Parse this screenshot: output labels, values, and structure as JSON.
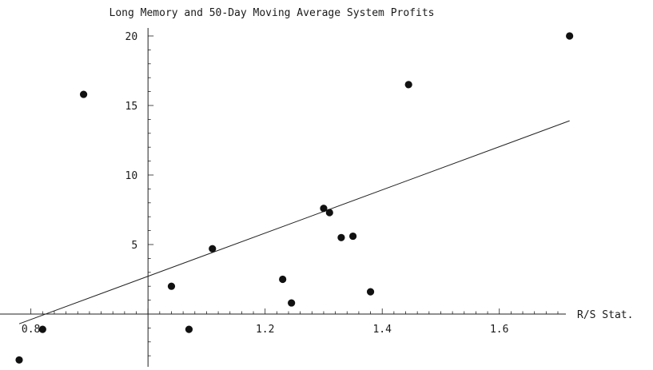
{
  "chart_data": {
    "type": "scatter",
    "title": "Long Memory and 50-Day Moving Average System Profits",
    "xlabel": "R/S Stat.",
    "ylabel": "",
    "xlim": [
      0.78,
      1.73
    ],
    "ylim": [
      -3.7,
      21
    ],
    "x_ticks": [
      0.8,
      1.2,
      1.4,
      1.6
    ],
    "x_tick_labels": [
      "0.8",
      "1.2",
      "1.4",
      "1.6"
    ],
    "y_ticks": [
      5,
      10,
      15,
      20
    ],
    "y_tick_labels": [
      "5",
      "10",
      "15",
      "20"
    ],
    "grid": false,
    "legend": "none",
    "series": [
      {
        "points": [
          {
            "x": 0.78,
            "y": -3.3
          },
          {
            "x": 0.82,
            "y": -1.1
          },
          {
            "x": 0.89,
            "y": 15.8
          },
          {
            "x": 1.04,
            "y": 2.0
          },
          {
            "x": 1.07,
            "y": -1.1
          },
          {
            "x": 1.11,
            "y": 4.7
          },
          {
            "x": 1.23,
            "y": 2.5
          },
          {
            "x": 1.245,
            "y": 0.8
          },
          {
            "x": 1.3,
            "y": 7.6
          },
          {
            "x": 1.31,
            "y": 7.3
          },
          {
            "x": 1.33,
            "y": 5.5
          },
          {
            "x": 1.35,
            "y": 5.6
          },
          {
            "x": 1.38,
            "y": 1.6
          },
          {
            "x": 1.445,
            "y": 16.5
          },
          {
            "x": 1.72,
            "y": 20.0
          }
        ]
      }
    ],
    "regression_line": {
      "x": [
        0.78,
        1.72
      ],
      "y": [
        -0.7,
        13.9
      ]
    },
    "colors": {
      "points": "#111111",
      "line": "#222222",
      "axes": "#222222"
    }
  }
}
